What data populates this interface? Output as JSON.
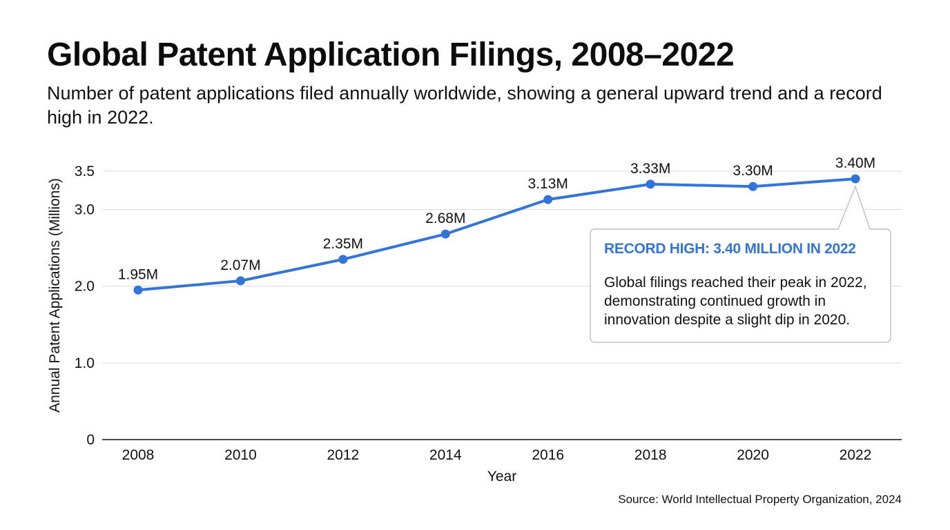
{
  "header": {
    "title": "Global Patent Application Filings, 2008–2022",
    "subtitle": "Number of patent applications filed annually worldwide, showing a general upward trend and a record high in 2022."
  },
  "chart_data": {
    "type": "line",
    "title": "Global Patent Application Filings, 2008–2022",
    "subtitle": "Number of patent applications filed annually worldwide, showing a general upward trend and a record high in 2022.",
    "xlabel": "Year",
    "ylabel": "Annual Patent Applications (Millions)",
    "x": [
      "2008",
      "2010",
      "2012",
      "2014",
      "2016",
      "2018",
      "2020",
      "2022"
    ],
    "series": [
      {
        "values": [
          1.95,
          2.07,
          2.35,
          2.68,
          3.13,
          3.33,
          3.3,
          3.4
        ],
        "labels": [
          "1.95M",
          "2.07M",
          "2.35M",
          "2.68M",
          "3.13M",
          "3.33M",
          "3.30M",
          "3.40M"
        ],
        "color": "#3274d9"
      }
    ],
    "yticks": [
      0,
      1.0,
      2.0,
      3.0,
      3.5
    ],
    "ytick_labels": [
      "0",
      "1.0",
      "2.0",
      "3.0",
      "3.5"
    ],
    "ylim": [
      0,
      3.5
    ],
    "grid": true,
    "annotation": {
      "heading": "RECORD HIGH: 3.40 MILLION IN 2022",
      "text": "Global filings reached their peak in 2022, demonstrating continued growth in innovation despite a slight dip in 2020.",
      "points_to": "2022"
    },
    "source": "Source: World Intellectual Property Organization, 2024"
  },
  "colors": {
    "line": "#3274d9",
    "grid": "#d9d9d9",
    "axis": "#111111",
    "callout_border": "#b5b5b5",
    "callout_heading": "#3274d9"
  }
}
